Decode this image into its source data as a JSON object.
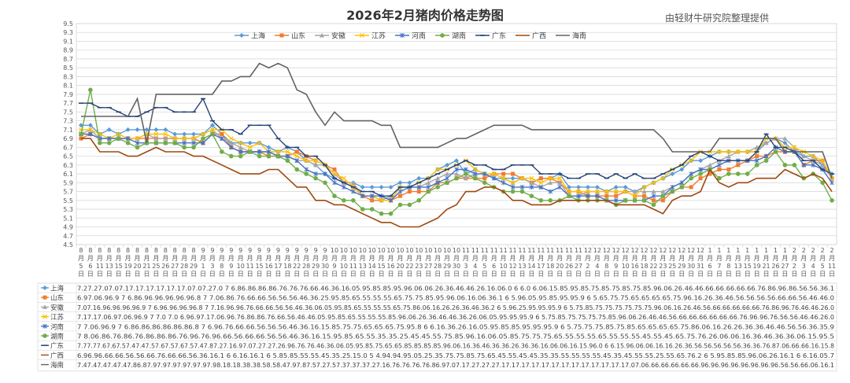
{
  "chart_data": {
    "type": "line",
    "title": "2026年2月猪肉价格走势图",
    "source_note": "由轻财牛研究院整理提供",
    "ylim": [
      4.5,
      9.5
    ],
    "ytick_step": 0.2,
    "grid": "horizontal",
    "legend_position": "top",
    "categories": [
      "8月5日",
      "8月6日",
      "8月11日",
      "8月13日",
      "8月15日",
      "8月19日",
      "8月20日",
      "8月21日",
      "8月25日",
      "8月26日",
      "8月27日",
      "8月28日",
      "8月29日",
      "9月1日",
      "9月3日",
      "9月8日",
      "9月9日",
      "9月10日",
      "9月11日",
      "9月15日",
      "9月16日",
      "9月17日",
      "9月18日",
      "9月22日",
      "9月28日",
      "9月29日",
      "9月30日",
      "10月9日",
      "10月10日",
      "10月11日",
      "10月13日",
      "10月14日",
      "10月15日",
      "10月16日",
      "10月20日",
      "10月22日",
      "10月23日",
      "10月27日",
      "10月28日",
      "10月29日",
      "10月30日",
      "11月3日",
      "11月4日",
      "11月5日",
      "11月6日",
      "11月10日",
      "11月12日",
      "11月13日",
      "11月14日",
      "11月17日",
      "11月18日",
      "11月20日",
      "11月26日",
      "11月27日",
      "12月2日",
      "12月4日",
      "12月8日",
      "12月9日",
      "12月10日",
      "12月16日",
      "12月18日",
      "12月22日",
      "12月23日",
      "12月25日",
      "12月29日",
      "12月30日",
      "12月31日",
      "1月6日",
      "1月7日",
      "1月8日",
      "1月13日",
      "1月15日",
      "1月19日",
      "1月21日",
      "1月26日",
      "1月27日",
      "2月2日",
      "2月3日",
      "2月4日",
      "2月5日",
      "2月11日"
    ],
    "series": [
      {
        "name": "上海",
        "color": "#5b9bd5",
        "marker": "diamond",
        "values": [
          7.2,
          7.2,
          7.0,
          7.1,
          7.0,
          7.1,
          7.1,
          7.1,
          7.1,
          7.1,
          7.0,
          7.0,
          7.0,
          7.0,
          7.2,
          7.0,
          6.8,
          6.8,
          6.8,
          6.8,
          6.7,
          6.6,
          6.7,
          6.6,
          6.4,
          6.3,
          6.1,
          6.0,
          5.9,
          5.9,
          5.8,
          5.8,
          5.8,
          5.8,
          5.9,
          5.9,
          6.0,
          6.0,
          6.2,
          6.3,
          6.4,
          6.1,
          6.2,
          6.1,
          6.0,
          6.0,
          6.0,
          6.0,
          5.9,
          6.0,
          6.0,
          6.1,
          5.8,
          5.8,
          5.8,
          5.8,
          5.7,
          5.8,
          5.8,
          5.7,
          5.8,
          5.9,
          6.0,
          6.1,
          6.2,
          6.4,
          6.4,
          6.5,
          6.6,
          6.6,
          6.6,
          6.6,
          6.6,
          6.8,
          6.9,
          6.8,
          6.6,
          6.5,
          6.5,
          6.3,
          6.1
        ]
      },
      {
        "name": "山东",
        "color": "#ed7d31",
        "marker": "square",
        "values": [
          6.9,
          7.0,
          6.9,
          6.9,
          6.9,
          6.9,
          6.9,
          6.9,
          6.9,
          6.9,
          6.9,
          6.9,
          6.9,
          6.8,
          7.0,
          7.0,
          6.7,
          6.6,
          6.6,
          6.6,
          6.5,
          6.5,
          6.5,
          6.6,
          6.5,
          6.4,
          6.3,
          6.2,
          5.9,
          5.8,
          5.6,
          5.5,
          5.5,
          5.5,
          5.6,
          5.7,
          5.7,
          5.7,
          5.9,
          5.9,
          6.0,
          6.0,
          6.0,
          6.0,
          6.1,
          6.1,
          6.1,
          6.0,
          5.9,
          6.0,
          6.0,
          5.9,
          5.7,
          5.7,
          5.6,
          5.6,
          5.6,
          5.6,
          5.7,
          5.6,
          5.6,
          5.5,
          5.5,
          5.7,
          5.8,
          5.8,
          6.0,
          6.1,
          6.2,
          6.2,
          6.3,
          6.4,
          6.5,
          6.5,
          6.6,
          6.6,
          6.6,
          6.3,
          6.4,
          6.4,
          6.0
        ]
      },
      {
        "name": "安徽",
        "color": "#a5a5a5",
        "marker": "triangle",
        "values": [
          7.0,
          7.1,
          6.9,
          6.9,
          6.9,
          6.9,
          6.9,
          7.0,
          6.9,
          6.9,
          6.9,
          6.9,
          6.9,
          7.0,
          7.1,
          6.9,
          6.8,
          6.7,
          6.6,
          6.6,
          6.6,
          6.5,
          6.5,
          6.4,
          6.4,
          6.3,
          6.3,
          6.1,
          5.9,
          5.9,
          5.6,
          5.6,
          5.5,
          5.6,
          5.8,
          5.8,
          5.8,
          5.9,
          6.0,
          6.1,
          6.1,
          6.0,
          6.1,
          6.1,
          6.1,
          6.0,
          5.9,
          6.0,
          5.9,
          5.8,
          5.9,
          5.9,
          5.6,
          5.6,
          5.7,
          5.7,
          5.7,
          5.7,
          5.7,
          5.7,
          5.7,
          5.7,
          5.7,
          5.8,
          5.9,
          6.1,
          6.2,
          6.3,
          6.4,
          6.5,
          6.6,
          6.6,
          6.7,
          6.8,
          6.9,
          6.9,
          6.7,
          6.5,
          6.4,
          6.3,
          6.0
        ]
      },
      {
        "name": "江苏",
        "color": "#ffc000",
        "marker": "x",
        "values": [
          7.1,
          7.1,
          7.0,
          6.9,
          7.0,
          6.9,
          6.9,
          7.0,
          7.0,
          7.0,
          6.9,
          6.9,
          6.9,
          7.0,
          7.1,
          7.1,
          6.9,
          6.8,
          6.7,
          6.8,
          6.6,
          6.6,
          6.6,
          6.5,
          6.4,
          6.4,
          6.3,
          6.1,
          6.0,
          5.8,
          5.6,
          5.6,
          5.5,
          5.5,
          5.8,
          5.8,
          5.9,
          6.0,
          6.2,
          6.2,
          6.3,
          6.4,
          6.2,
          6.1,
          6.1,
          6.0,
          5.9,
          6.0,
          6.0,
          5.9,
          6.0,
          6.0,
          5.7,
          5.7,
          5.7,
          5.7,
          5.7,
          5.7,
          5.7,
          5.6,
          5.8,
          5.9,
          6.0,
          6.2,
          6.3,
          6.4,
          6.6,
          6.6,
          6.6,
          6.6,
          6.6,
          6.6,
          6.6,
          6.9,
          6.9,
          6.7,
          6.7,
          6.6,
          6.5,
          6.4,
          6.0
        ]
      },
      {
        "name": "河南",
        "color": "#4472c4",
        "marker": "star",
        "values": [
          7.0,
          7.0,
          6.9,
          6.9,
          6.9,
          6.9,
          6.8,
          6.8,
          6.8,
          6.8,
          6.8,
          6.8,
          6.8,
          6.8,
          7.0,
          6.9,
          6.7,
          6.6,
          6.6,
          6.6,
          6.6,
          6.5,
          6.5,
          6.4,
          6.2,
          6.1,
          6.1,
          5.9,
          5.8,
          5.7,
          5.6,
          5.6,
          5.6,
          5.5,
          5.7,
          5.8,
          5.8,
          5.8,
          5.9,
          6.0,
          6.2,
          6.2,
          6.1,
          6.1,
          6.0,
          5.9,
          5.8,
          5.8,
          5.8,
          5.8,
          5.7,
          5.8,
          5.6,
          5.6,
          5.6,
          5.6,
          5.5,
          5.5,
          5.5,
          5.5,
          5.5,
          5.6,
          5.6,
          5.8,
          5.9,
          6.1,
          6.2,
          6.2,
          6.3,
          6.4,
          6.4,
          6.4,
          6.4,
          6.5,
          6.7,
          6.6,
          6.6,
          6.3,
          6.3,
          6.2,
          5.9
        ]
      },
      {
        "name": "湖南",
        "color": "#70ad47",
        "marker": "circle",
        "values": [
          7.0,
          8.0,
          6.8,
          6.8,
          6.9,
          6.8,
          6.7,
          6.8,
          6.8,
          6.8,
          6.8,
          6.7,
          6.7,
          6.9,
          7.0,
          6.6,
          6.5,
          6.5,
          6.6,
          6.5,
          6.5,
          6.5,
          6.4,
          6.2,
          6.1,
          6.0,
          5.9,
          5.6,
          5.5,
          5.5,
          5.3,
          5.3,
          5.2,
          5.2,
          5.4,
          5.4,
          5.5,
          5.7,
          5.8,
          5.9,
          6.0,
          6.1,
          6.0,
          5.9,
          5.8,
          5.7,
          5.7,
          5.7,
          5.6,
          5.5,
          5.5,
          5.5,
          5.6,
          5.5,
          5.5,
          5.5,
          5.5,
          5.4,
          5.5,
          5.5,
          5.5,
          5.4,
          5.6,
          5.7,
          5.8,
          6.0,
          6.1,
          6.2,
          6.0,
          6.1,
          6.1,
          6.1,
          6.3,
          6.4,
          6.6,
          6.3,
          6.3,
          6.0,
          6.1,
          5.9,
          5.5
        ]
      },
      {
        "name": "广东",
        "color": "#264478",
        "marker": "dash",
        "values": [
          7.7,
          7.7,
          7.6,
          7.6,
          7.5,
          7.4,
          7.4,
          7.5,
          7.6,
          7.6,
          7.5,
          7.5,
          7.5,
          7.8,
          7.3,
          7.1,
          7.1,
          7.0,
          7.2,
          7.2,
          7.2,
          6.9,
          6.7,
          6.7,
          6.5,
          6.5,
          6.3,
          6.0,
          5.9,
          5.8,
          5.7,
          5.7,
          5.6,
          5.6,
          5.8,
          5.8,
          5.9,
          6.0,
          6.1,
          6.2,
          6.3,
          6.4,
          6.3,
          6.3,
          6.2,
          6.2,
          6.3,
          6.3,
          6.3,
          6.1,
          6.1,
          6.1,
          6.0,
          6.0,
          6.1,
          6.1,
          6.0,
          6.1,
          6.0,
          6.1,
          6.0,
          6.0,
          6.1,
          6.2,
          6.3,
          6.5,
          6.6,
          6.5,
          6.4,
          6.4,
          6.4,
          6.4,
          6.6,
          7.0,
          6.7,
          6.7,
          6.6,
          6.4,
          6.4,
          6.2,
          6.1
        ]
      },
      {
        "name": "广西",
        "color": "#9e480e",
        "marker": "none",
        "values": [
          6.9,
          6.9,
          6.6,
          6.6,
          6.6,
          6.5,
          6.5,
          6.6,
          6.7,
          6.6,
          6.6,
          6.6,
          6.5,
          6.5,
          6.4,
          6.3,
          6.2,
          6.1,
          6.1,
          6.1,
          6.2,
          6.2,
          6.0,
          5.8,
          5.8,
          5.5,
          5.5,
          5.4,
          5.4,
          5.3,
          5.2,
          5.1,
          5.0,
          5.0,
          4.9,
          4.9,
          4.9,
          5.0,
          5.1,
          5.3,
          5.4,
          5.7,
          5.7,
          5.8,
          5.8,
          5.7,
          5.5,
          5.5,
          5.4,
          5.4,
          5.4,
          5.5,
          5.5,
          5.5,
          5.5,
          5.5,
          5.5,
          5.4,
          5.4,
          5.4,
          5.4,
          5.3,
          5.2,
          5.5,
          5.6,
          5.6,
          5.7,
          6.2,
          5.9,
          5.8,
          5.9,
          5.9,
          6.0,
          6.0,
          6.0,
          6.2,
          6.1,
          6.0,
          6.1,
          6.0,
          5.7
        ]
      },
      {
        "name": "海南",
        "color": "#636363",
        "marker": "none",
        "values": [
          7.4,
          7.4,
          7.4,
          7.4,
          7.4,
          7.4,
          7.8,
          6.8,
          7.9,
          7.9,
          7.9,
          7.9,
          7.9,
          7.9,
          7.9,
          8.2,
          8.2,
          8.3,
          8.3,
          8.6,
          8.5,
          8.6,
          8.5,
          8.0,
          7.9,
          7.5,
          7.2,
          7.5,
          7.3,
          7.3,
          7.3,
          7.3,
          7.2,
          7.2,
          6.7,
          6.7,
          6.7,
          6.7,
          6.7,
          6.8,
          6.9,
          6.9,
          7.0,
          7.1,
          7.2,
          7.2,
          7.2,
          7.2,
          7.1,
          7.1,
          7.1,
          7.1,
          7.1,
          7.1,
          7.1,
          7.1,
          7.1,
          7.1,
          7.1,
          7.1,
          7.1,
          7.1,
          6.9,
          6.6,
          6.6,
          6.6,
          6.6,
          6.6,
          6.9,
          6.9,
          6.9,
          6.9,
          6.9,
          6.9,
          6.9,
          6.6,
          6.6,
          6.6,
          6.6,
          6.6,
          6.0
        ]
      }
    ],
    "table_rows": [
      {
        "name": "上海",
        "text": "7.27.27.07.07.17.17.17.17.17.17.07.07.27.0 7 6.86.86.86.86.76.76.76.66.46.36.16.05.95.85.85.95.96.06.06.26.36.46.46.26.16.06.0 6 6.0 6.06.15.85.95.85.75.85.75.85.75.85.96.06.26.46.46.66.66.66.66.66.76.86.96.86.56.56.36.1"
      },
      {
        "name": "山东",
        "text": "6.97.06.96.9 7 6.86.96.96.96.96.96.8 7 7.06.86.76.66.66.56.56.56.46.36.25.95.85.65.55.55.55.65.75.75.85.95.96.06.16.06.36.1 6 5.96.05.95.85.95.95.9 6 5.65.75.75.65.65.65.65.75.96.16.26.36.46.56.56.56.56.66.66.56.46.46.0"
      },
      {
        "name": "安徽",
        "text": "7.07.16.96.96.96.96.9 7 6.96.96.96.96.8 7 7.16.96.96.76.66.66.56.56.46.36.06.05.95.85.65.55.55.55.65.75.86.06.16.26.26.36.46.36.2 6 5.96.25.95.95.95.9 6 5.75.85.75.75.75.75.75.75.96.06.16.26.46.56.66.66.66.66.66.76.86.96.76.46.46.26.0"
      },
      {
        "name": "江苏",
        "text": "7.17.17.06.97.06.96.9 7 7.0 7.0 6.96.97.17.06.96.76.86.86.76.66.56.46.46.05.95.85.65.55.55.55.85.96.06.26.36.46.46.36.26.06.05.95.95.95.9 6 5.75.85.75.75.75.75.85.96.06.26.46.46.56.66.66.66.66.66.66.76.96.96.76.56.56.46.46.26.0"
      },
      {
        "name": "河南",
        "text": "7 7.06.96.9 7 6.86.86.86.86.86.86.8 7 6.96.76.66.66.56.56.56.46.36.16.15.85.75.75.65.65.65.75.95.8 6 6.16.36.26.16.05.95.85.85.95.95.95.9 6 5.75.75.75.85.75.85.65.65.65.65.75.86.06.16.26.26.36.36.46.46.56.56.36.35.9"
      },
      {
        "name": "湖南",
        "text": "7 8.06.86.76.86.76.86.86.86.76.96.76.96.66.56.66.66.56.56.46.36.16.15.95.85.65.55.35.35.25.45.45.55.75.85.96.16.06.05.85.75.75.75.65.55.55.55.65.55.55.55.45.55.45.65.75.76.26.06.06.16.36.46.36.36.06.15.95.5"
      },
      {
        "name": "广东",
        "text": "7.77.77.67.67.57.47.47.57.67.57.67.57.47.87.27.16.97.07.27.27.26.96.76.76.46.36.06.05.95.85.75.65.65.85.85.85.85.96.06.16.36.46.36.36.26.36.36.16.06.06.16.15.96.0 6 6.15.96.06.06.16.16.26.36.56.56.56.56.56.36.36.76.87.06.66.66.16.15.8"
      },
      {
        "name": "广西",
        "text": "6.96.96.66.66.56.56.66.76.66.66.56.36.16.1 6 6.16.16.1 6 5.85.85.55.55.45.35.25.15.0 5 4.94.94.95.05.25.35.75.75.85.75.65.45.55.45.45.35.35.55.55.55.55.45.35.45.55.55.25.55.65.76.2 6 5.95.85.85.96.06.26.16.1 6 6.16.05.7"
      },
      {
        "name": "海南",
        "text": "7.47.47.47.47.47.86.87.97.97.97.97.97.97.98.18.18.38.38.58.58.47.97.87.57.27.57.37.37.37.27.16.76.76.76.76.86.97.07.17.27.27.27.17.17.17.17.17.17.17.17.17.17.17.17.17.07.06.66.66.66.66.66.96.96.96.96.96.96.96.96.56.56.66.06.16.1"
      }
    ]
  }
}
